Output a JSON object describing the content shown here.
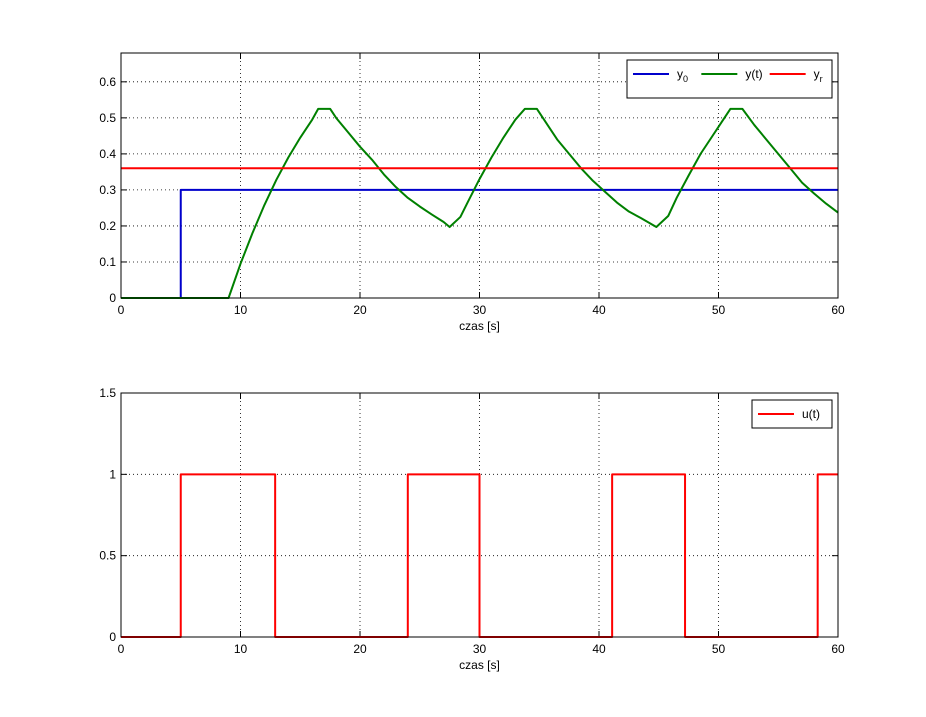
{
  "chart_data": [
    {
      "type": "line",
      "xlabel": "czas [s]",
      "ylabel": "",
      "xlim": [
        0,
        60
      ],
      "ylim": [
        0,
        0.68
      ],
      "xticks": [
        0,
        10,
        20,
        30,
        40,
        50,
        60
      ],
      "yticks": [
        0,
        0.1,
        0.2,
        0.3,
        0.4,
        0.5,
        0.6
      ],
      "xtick_labels": [
        "0",
        "10",
        "20",
        "30",
        "40",
        "50",
        "60"
      ],
      "ytick_labels": [
        "0",
        "0.1",
        "0.2",
        "0.3",
        "0.4",
        "0.5",
        "0.6"
      ],
      "grid": true,
      "legend_position": "top-right",
      "series": [
        {
          "name": "y",
          "name_subscript": "0",
          "color": "#0000cc",
          "x": [
            0,
            5,
            5,
            60
          ],
          "y": [
            0,
            0,
            0.3,
            0.3
          ]
        },
        {
          "name": "y(t)",
          "color": "#008000",
          "x": [
            0,
            9,
            10,
            11,
            12,
            13,
            14,
            15,
            16,
            16.5,
            17.5,
            18,
            19,
            20,
            21,
            22,
            23,
            24,
            25,
            26,
            27,
            27.5,
            28.4,
            29,
            30,
            31,
            32,
            33,
            33.8,
            34.8,
            35.5,
            36.5,
            37.5,
            38.5,
            39.5,
            40.5,
            41.5,
            42.5,
            43.5,
            44.8,
            45.8,
            46.5,
            47.5,
            48.5,
            49.5,
            50.5,
            51,
            52,
            53,
            54,
            55,
            56,
            57,
            58,
            59,
            60
          ],
          "y": [
            0,
            0,
            0.095,
            0.18,
            0.258,
            0.328,
            0.39,
            0.445,
            0.495,
            0.525,
            0.525,
            0.5,
            0.46,
            0.42,
            0.384,
            0.343,
            0.308,
            0.278,
            0.254,
            0.232,
            0.211,
            0.197,
            0.225,
            0.265,
            0.33,
            0.39,
            0.445,
            0.495,
            0.525,
            0.525,
            0.49,
            0.44,
            0.4,
            0.36,
            0.325,
            0.295,
            0.265,
            0.24,
            0.222,
            0.197,
            0.228,
            0.278,
            0.34,
            0.4,
            0.45,
            0.5,
            0.525,
            0.525,
            0.48,
            0.44,
            0.4,
            0.36,
            0.32,
            0.29,
            0.262,
            0.237
          ]
        },
        {
          "name": "y",
          "name_subscript": "r",
          "color": "#ff0000",
          "x": [
            0,
            60
          ],
          "y": [
            0.36,
            0.36
          ]
        }
      ]
    },
    {
      "type": "line",
      "xlabel": "czas [s]",
      "ylabel": "",
      "xlim": [
        0,
        60
      ],
      "ylim": [
        0,
        1.5
      ],
      "xticks": [
        0,
        10,
        20,
        30,
        40,
        50,
        60
      ],
      "yticks": [
        0,
        0.5,
        1,
        1.5
      ],
      "xtick_labels": [
        "0",
        "10",
        "20",
        "30",
        "40",
        "50",
        "60"
      ],
      "ytick_labels": [
        "0",
        "0.5",
        "1",
        "1.5"
      ],
      "grid": true,
      "legend_position": "top-right",
      "series": [
        {
          "name": "u(t)",
          "color": "#ff0000",
          "x": [
            0,
            5,
            5,
            12.9,
            12.9,
            24,
            24,
            30,
            30,
            41.1,
            41.1,
            47.2,
            47.2,
            58.3,
            58.3,
            60
          ],
          "y": [
            0,
            0,
            1,
            1,
            0,
            0,
            1,
            1,
            0,
            0,
            1,
            1,
            0,
            0,
            1,
            1
          ]
        }
      ]
    }
  ]
}
